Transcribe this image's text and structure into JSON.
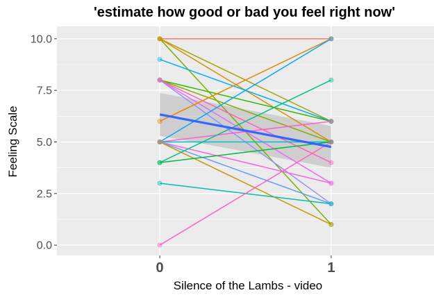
{
  "chart_data": {
    "type": "line",
    "title": "'estimate how good or bad you feel right now'",
    "xlabel": "Silence of the Lambs - video",
    "ylabel": "Feeling Scale",
    "x_categories": [
      "0",
      "1"
    ],
    "xlim": [
      -0.6,
      1.6
    ],
    "ylim": [
      -0.5,
      10.6
    ],
    "yticks": [
      0.0,
      2.5,
      5.0,
      7.5,
      10.0
    ],
    "ytick_labels": [
      "0.0",
      "2.5",
      "5.0",
      "7.5",
      "10.0"
    ],
    "grid": true,
    "legend": "none",
    "panel_background": "#ebebeb",
    "series": [
      {
        "values": [
          10,
          10
        ],
        "color": "#F8766D"
      },
      {
        "values": [
          10,
          1
        ],
        "color": "#7CAE00"
      },
      {
        "values": [
          10,
          6
        ],
        "color": "#A3A500"
      },
      {
        "values": [
          10,
          5
        ],
        "color": "#D89000"
      },
      {
        "values": [
          9,
          6
        ],
        "color": "#00B0F6"
      },
      {
        "values": [
          8,
          6
        ],
        "color": "#39B600"
      },
      {
        "values": [
          8,
          5
        ],
        "color": "#85AD00"
      },
      {
        "values": [
          8,
          3
        ],
        "color": "#E76BF3"
      },
      {
        "values": [
          8,
          2
        ],
        "color": "#9590FF"
      },
      {
        "values": [
          8,
          4
        ],
        "color": "#FF62BC"
      },
      {
        "values": [
          6,
          10
        ],
        "color": "#E58700"
      },
      {
        "values": [
          5,
          10
        ],
        "color": "#00A9FF"
      },
      {
        "values": [
          5,
          6
        ],
        "color": "#FD61D1"
      },
      {
        "values": [
          5,
          5
        ],
        "color": "#00BFC4"
      },
      {
        "values": [
          5,
          3
        ],
        "color": "#F564E3"
      },
      {
        "values": [
          5,
          2
        ],
        "color": "#619CFF"
      },
      {
        "values": [
          5,
          1
        ],
        "color": "#C99800"
      },
      {
        "values": [
          4,
          8
        ],
        "color": "#00C08B"
      },
      {
        "values": [
          4,
          5
        ],
        "color": "#00BA38"
      },
      {
        "values": [
          3,
          2
        ],
        "color": "#00BFAD"
      },
      {
        "values": [
          0,
          5
        ],
        "color": "#FF61C3"
      }
    ],
    "trend": {
      "type": "linear fit",
      "values": [
        6.33,
        4.76
      ],
      "ci_low": [
        5.3,
        3.75
      ],
      "ci_high": [
        7.38,
        5.77
      ],
      "color": "#3366FF",
      "ci_color": "#999999"
    }
  }
}
